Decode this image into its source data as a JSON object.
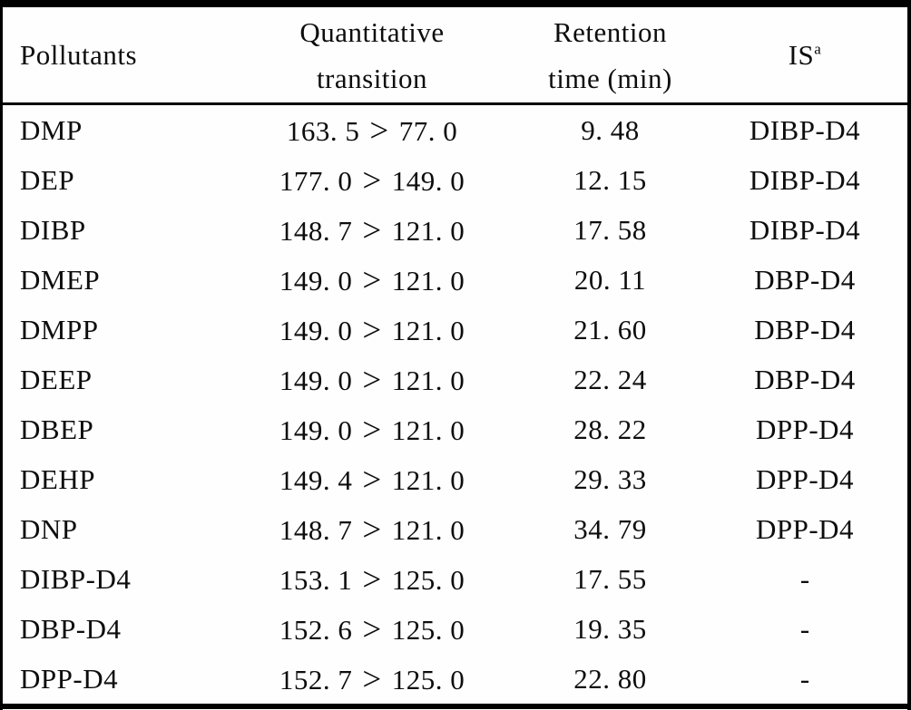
{
  "table": {
    "symbols": {
      "greater_than": ">"
    },
    "header": {
      "pollutants": "Pollutants",
      "transition_line1": "Quantitative",
      "transition_line2": "transition",
      "retention_line1": "Retention",
      "retention_line2": "time (min)",
      "is_base": "IS",
      "is_sup": "a"
    },
    "rows": [
      {
        "pollutant": "DMP",
        "from": "163. 5",
        "to": "77. 0",
        "rt": "9. 48",
        "is": "DIBP-D4"
      },
      {
        "pollutant": "DEP",
        "from": "177. 0",
        "to": "149. 0",
        "rt": "12. 15",
        "is": "DIBP-D4"
      },
      {
        "pollutant": "DIBP",
        "from": "148. 7",
        "to": "121. 0",
        "rt": "17. 58",
        "is": "DIBP-D4"
      },
      {
        "pollutant": "DMEP",
        "from": "149. 0",
        "to": "121. 0",
        "rt": "20. 11",
        "is": "DBP-D4"
      },
      {
        "pollutant": "DMPP",
        "from": "149. 0",
        "to": "121. 0",
        "rt": "21. 60",
        "is": "DBP-D4"
      },
      {
        "pollutant": "DEEP",
        "from": "149. 0",
        "to": "121. 0",
        "rt": "22. 24",
        "is": "DBP-D4"
      },
      {
        "pollutant": "DBEP",
        "from": "149. 0",
        "to": "121. 0",
        "rt": "28. 22",
        "is": "DPP-D4"
      },
      {
        "pollutant": "DEHP",
        "from": "149. 4",
        "to": "121. 0",
        "rt": "29. 33",
        "is": "DPP-D4"
      },
      {
        "pollutant": "DNP",
        "from": "148. 7",
        "to": "121. 0",
        "rt": "34. 79",
        "is": "DPP-D4"
      },
      {
        "pollutant": "DIBP-D4",
        "from": "153. 1",
        "to": "125. 0",
        "rt": "17. 55",
        "is": "-"
      },
      {
        "pollutant": "DBP-D4",
        "from": "152. 6",
        "to": "125. 0",
        "rt": "19. 35",
        "is": "-"
      },
      {
        "pollutant": "DPP-D4",
        "from": "152. 7",
        "to": "125. 0",
        "rt": "22. 80",
        "is": "-"
      }
    ]
  }
}
